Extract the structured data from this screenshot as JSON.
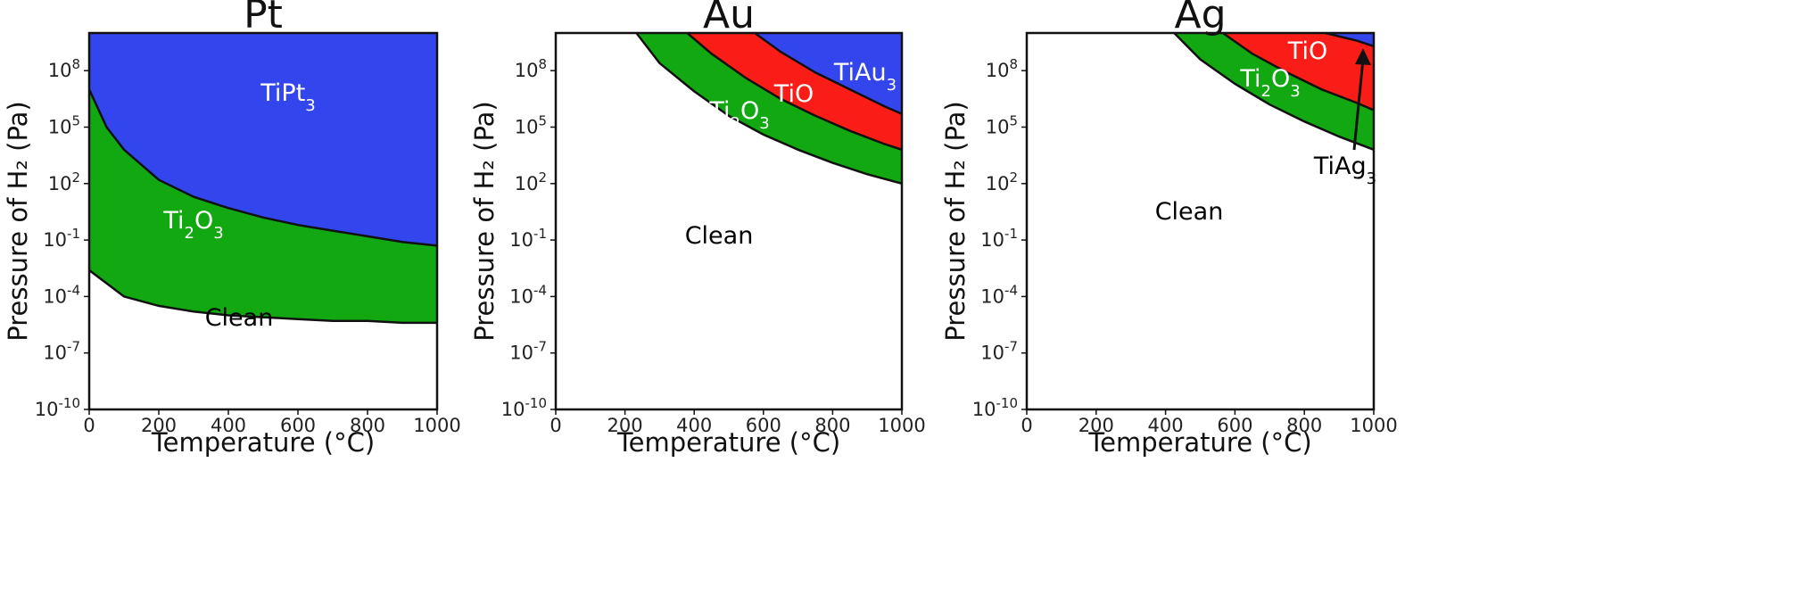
{
  "figure": {
    "panels": [
      {
        "title": "Pt"
      },
      {
        "title": "Au"
      },
      {
        "title": "Ag"
      }
    ]
  },
  "chart_data": [
    {
      "type": "area",
      "title": "Pt",
      "xlabel": "Temperature (°C)",
      "ylabel": "Pressure of H₂ (Pa)",
      "xlim": [
        0,
        1000
      ],
      "ylim_log10": [
        -10,
        10
      ],
      "yscale": "log",
      "grid": false,
      "xticks": [
        "0",
        "200",
        "400",
        "600",
        "800",
        "1000"
      ],
      "yticks": [
        "10^-10",
        "10^-7",
        "10^-4",
        "10^-1",
        "10^2",
        "10^5",
        "10^8"
      ],
      "boundaries": [
        {
          "name": "Clean/Ti2O3",
          "x": [
            0,
            100,
            200,
            300,
            400,
            500,
            600,
            700,
            800,
            900,
            1000
          ],
          "log10_y": [
            -2.6,
            -4.0,
            -4.5,
            -4.8,
            -5.0,
            -5.1,
            -5.2,
            -5.3,
            -5.3,
            -5.4,
            -5.4
          ]
        },
        {
          "name": "Ti2O3/TiPt3",
          "x": [
            0,
            50,
            100,
            200,
            300,
            400,
            500,
            600,
            700,
            800,
            900,
            1000
          ],
          "log10_y": [
            7.0,
            5.0,
            3.8,
            2.2,
            1.3,
            0.7,
            0.2,
            -0.2,
            -0.5,
            -0.8,
            -1.1,
            -1.3
          ]
        }
      ],
      "regions": [
        {
          "label": "Clean",
          "color": "#ffffff",
          "text_color": "#000000"
        },
        {
          "label": "Ti2O3",
          "color": "#12a812",
          "text_color": "#ffffff"
        },
        {
          "label": "TiPt3",
          "color": "#3346ee",
          "text_color": "#ffffff"
        }
      ]
    },
    {
      "type": "area",
      "title": "Au",
      "xlabel": "Temperature (°C)",
      "ylabel": "Pressure of H₂ (Pa)",
      "xlim": [
        0,
        1000
      ],
      "ylim_log10": [
        -10,
        10
      ],
      "yscale": "log",
      "grid": false,
      "xticks": [
        "0",
        "200",
        "400",
        "600",
        "800",
        "1000"
      ],
      "yticks": [
        "10^-10",
        "10^-7",
        "10^-4",
        "10^-1",
        "10^2",
        "10^5",
        "10^8"
      ],
      "boundaries": [
        {
          "name": "Clean/Ti2O3",
          "x": [
            233,
            300,
            400,
            500,
            600,
            700,
            800,
            900,
            1000
          ],
          "log10_y": [
            10,
            8.4,
            6.9,
            5.6,
            4.6,
            3.8,
            3.1,
            2.5,
            2.0
          ]
        },
        {
          "name": "Ti2O3/TiO",
          "x": [
            380,
            450,
            550,
            650,
            750,
            850,
            950,
            1000
          ],
          "log10_y": [
            10,
            8.9,
            7.6,
            6.5,
            5.6,
            4.8,
            4.1,
            3.8
          ]
        },
        {
          "name": "TiO/TiAu3",
          "x": [
            575,
            650,
            750,
            850,
            950,
            1000
          ],
          "log10_y": [
            10,
            9.0,
            7.9,
            7.0,
            6.1,
            5.7
          ]
        }
      ],
      "regions": [
        {
          "label": "Clean",
          "color": "#ffffff",
          "text_color": "#000000"
        },
        {
          "label": "Ti2O3",
          "color": "#12a812",
          "text_color": "#ffffff"
        },
        {
          "label": "TiO",
          "color": "#fa1d17",
          "text_color": "#ffffff"
        },
        {
          "label": "TiAu3",
          "color": "#3346ee",
          "text_color": "#ffffff"
        }
      ]
    },
    {
      "type": "area",
      "title": "Ag",
      "xlabel": "Temperature (°C)",
      "ylabel": "Pressure of H₂ (Pa)",
      "xlim": [
        0,
        1000
      ],
      "ylim_log10": [
        -10,
        10
      ],
      "yscale": "log",
      "grid": false,
      "xticks": [
        "0",
        "200",
        "400",
        "600",
        "800",
        "1000"
      ],
      "yticks": [
        "10^-10",
        "10^-7",
        "10^-4",
        "10^-1",
        "10^2",
        "10^5",
        "10^8"
      ],
      "boundaries": [
        {
          "name": "Clean/Ti2O3",
          "x": [
            425,
            500,
            600,
            700,
            800,
            900,
            1000
          ],
          "log10_y": [
            10,
            8.6,
            7.3,
            6.2,
            5.3,
            4.5,
            3.8
          ]
        },
        {
          "name": "Ti2O3/TiO",
          "x": [
            565,
            650,
            750,
            850,
            950,
            1000
          ],
          "log10_y": [
            10,
            8.9,
            7.9,
            7.0,
            6.3,
            5.9
          ]
        },
        {
          "name": "TiO/TiAg3",
          "x": [
            860,
            950,
            1000
          ],
          "log10_y": [
            10,
            9.6,
            9.3
          ]
        }
      ],
      "regions": [
        {
          "label": "Clean",
          "color": "#ffffff",
          "text_color": "#000000"
        },
        {
          "label": "Ti2O3",
          "color": "#12a812",
          "text_color": "#ffffff"
        },
        {
          "label": "TiO",
          "color": "#fa1d17",
          "text_color": "#ffffff"
        },
        {
          "label": "TiAg3",
          "color": "#3346ee",
          "text_color": "#000000",
          "annotation": "arrow"
        }
      ]
    }
  ]
}
